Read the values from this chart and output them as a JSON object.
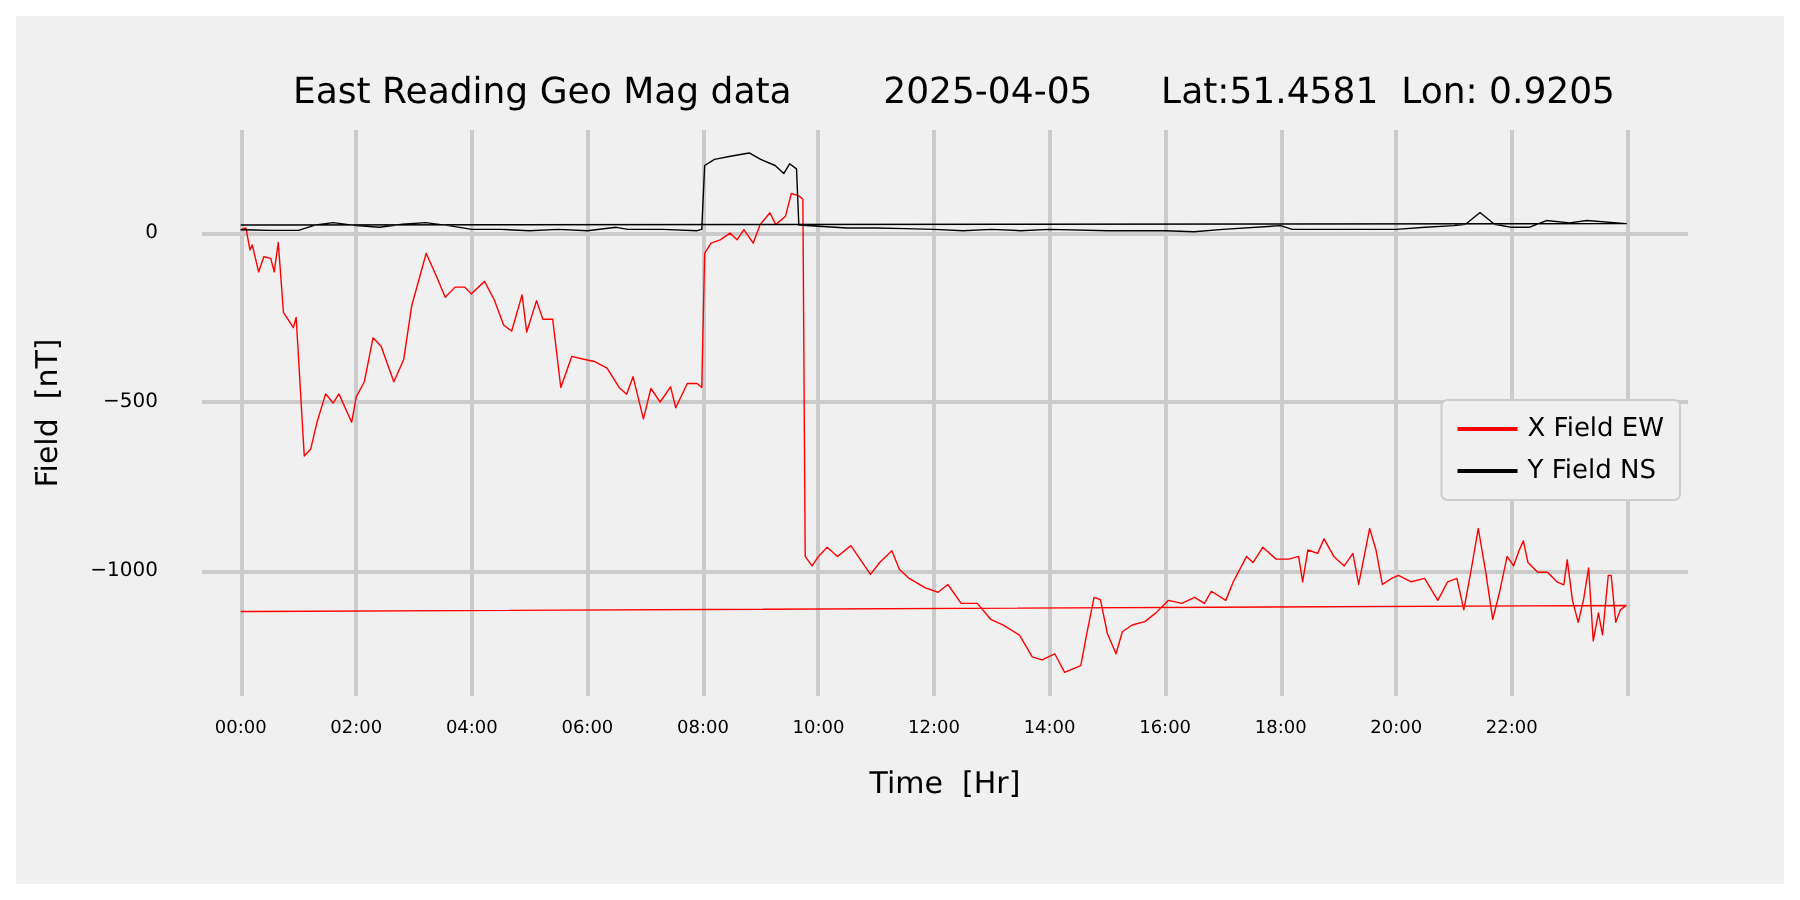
{
  "chart_data": {
    "type": "line",
    "title": "East Reading Geo Mag data        2025-04-05      Lat:51.4581  Lon: 0.9205",
    "xlabel": "Time  [Hr]",
    "ylabel": "Field  [nT]",
    "xlim": [
      -0.67,
      25.05
    ],
    "ylim": [
      -1370,
      305
    ],
    "xticks": [
      {
        "value": 0,
        "label": "00:00"
      },
      {
        "value": 2,
        "label": "02:00"
      },
      {
        "value": 4,
        "label": "04:00"
      },
      {
        "value": 6,
        "label": "06:00"
      },
      {
        "value": 8,
        "label": "08:00"
      },
      {
        "value": 10,
        "label": "10:00"
      },
      {
        "value": 12,
        "label": "12:00"
      },
      {
        "value": 14,
        "label": "14:00"
      },
      {
        "value": 16,
        "label": "16:00"
      },
      {
        "value": 18,
        "label": "18:00"
      },
      {
        "value": 20,
        "label": "20:00"
      },
      {
        "value": 22,
        "label": "22:00"
      },
      {
        "value": 24,
        "label": null
      }
    ],
    "yticks": [
      {
        "value": -1000,
        "label": "−1000"
      },
      {
        "value": -500,
        "label": "−500"
      },
      0
    ],
    "grid": true,
    "legend": "right",
    "series": [
      {
        "name": "X Field EW",
        "color": "#ff0000",
        "x": [
          0,
          0.09,
          0.16,
          0.2,
          0.31,
          0.4,
          0.52,
          0.58,
          0.65,
          0.74,
          0.91,
          0.96,
          1.1,
          1.21,
          1.32,
          1.47,
          1.6,
          1.7,
          1.92,
          2.0,
          2.14,
          2.29,
          2.43,
          2.65,
          2.82,
          2.96,
          3.21,
          3.38,
          3.54,
          3.71,
          3.88,
          3.99,
          4.22,
          4.39,
          4.55,
          4.69,
          4.87,
          4.95,
          5.12,
          5.23,
          5.4,
          5.54,
          5.73,
          5.9,
          6.12,
          6.34,
          6.55,
          6.68,
          6.79,
          6.97,
          7.1,
          7.26,
          7.44,
          7.53,
          7.73,
          7.9,
          7.98,
          8.03,
          8.14,
          8.3,
          8.47,
          8.59,
          8.71,
          8.87,
          8.99,
          9.16,
          9.26,
          9.43,
          9.53,
          9.66,
          9.73,
          9.77,
          9.89,
          10.0,
          10.15,
          10.33,
          10.56,
          10.72,
          10.9,
          11.06,
          11.27,
          11.4,
          11.57,
          11.85,
          12.07,
          12.24,
          12.47,
          12.75,
          12.98,
          13.2,
          13.48,
          13.7,
          13.87,
          14.09,
          14.26,
          14.54,
          14.65,
          14.77,
          14.88,
          15.0,
          15.15,
          15.26,
          15.43,
          15.65,
          15.84,
          16.06,
          16.29,
          16.51,
          16.68,
          16.8,
          17.05,
          17.18,
          17.41,
          17.52,
          17.69,
          17.92,
          18.14,
          18.31,
          18.38,
          18.47,
          18.64,
          18.75,
          18.92,
          19.1,
          19.25,
          19.35,
          19.54,
          19.65,
          19.76,
          19.92,
          20.04,
          20.26,
          20.49,
          20.72,
          20.89,
          21.05,
          21.17,
          21.3,
          21.42,
          21.55,
          21.67,
          21.78,
          21.92,
          22.03,
          22.13,
          22.2,
          22.28,
          22.45,
          22.62,
          22.78,
          22.9,
          22.96,
          23.05,
          23.15,
          23.24,
          23.33,
          23.41,
          23.5,
          23.57,
          23.67,
          23.72,
          23.8,
          23.88,
          23.98,
          0
        ],
        "values": [
          10,
          15,
          -50,
          -35,
          -115,
          -70,
          -75,
          -115,
          -28,
          -235,
          -280,
          -250,
          -660,
          -640,
          -560,
          -476,
          -503,
          -476,
          -560,
          -485,
          -440,
          -310,
          -335,
          -440,
          -375,
          -215,
          -60,
          -125,
          -190,
          -160,
          -160,
          -180,
          -143,
          -198,
          -272,
          -290,
          -183,
          -293,
          -200,
          -255,
          -255,
          -457,
          -365,
          -372,
          -380,
          -400,
          -457,
          -477,
          -425,
          -550,
          -460,
          -500,
          -455,
          -517,
          -445,
          -445,
          -457,
          -60,
          -30,
          -20,
          0,
          -20,
          10,
          -30,
          25,
          60,
          25,
          50,
          117,
          110,
          100,
          -957,
          -985,
          -957,
          -930,
          -957,
          -925,
          -965,
          -1010,
          -975,
          -940,
          -995,
          -1022,
          -1050,
          -1063,
          -1040,
          -1096,
          -1096,
          -1143,
          -1160,
          -1190,
          -1254,
          -1263,
          -1245,
          -1300,
          -1280,
          -1180,
          -1078,
          -1085,
          -1185,
          -1245,
          -1180,
          -1160,
          -1150,
          -1124,
          -1087,
          -1096,
          -1078,
          -1096,
          -1060,
          -1087,
          -1032,
          -957,
          -975,
          -930,
          -965,
          -965,
          -957,
          -1032,
          -938,
          -948,
          -905,
          -957,
          -985,
          -948,
          -1040,
          -874,
          -938,
          -1040,
          -1022,
          -1013,
          -1032,
          -1022,
          -1087,
          -1032,
          -1022,
          -1115,
          -994,
          -874,
          -1004,
          -1143,
          -1069,
          -957,
          -985,
          -938,
          -911,
          -975,
          -1004,
          -1004,
          -1032,
          -1041,
          -967,
          -1087,
          -1152,
          -1087,
          -991,
          -1207,
          -1124,
          -1189,
          -1013,
          -1013,
          -1152,
          -1115,
          -1102,
          -1120
        ]
      },
      {
        "name": "Y Field NS",
        "color": "#000000",
        "x": [
          0,
          0.5,
          1.0,
          1.3,
          1.6,
          2.0,
          2.4,
          2.8,
          3.2,
          3.6,
          4.0,
          4.5,
          5.0,
          5.5,
          6.0,
          6.5,
          6.7,
          7.3,
          7.9,
          7.98,
          8.03,
          8.2,
          8.5,
          8.8,
          9.0,
          9.25,
          9.4,
          9.5,
          9.62,
          9.66,
          10.0,
          10.5,
          11.0,
          11.5,
          12.0,
          12.5,
          13.0,
          13.5,
          14.0,
          15.0,
          16.0,
          16.5,
          17.0,
          18.0,
          18.2,
          19.0,
          20.0,
          20.5,
          21.0,
          21.2,
          21.45,
          21.7,
          22.0,
          22.3,
          22.6,
          23.0,
          23.3,
          23.98,
          0
        ],
        "values": [
          10,
          8,
          8,
          24,
          31,
          22,
          17,
          26,
          31,
          22,
          11,
          11,
          7,
          11,
          7,
          17,
          11,
          11,
          7,
          11,
          200,
          218,
          228,
          237,
          218,
          200,
          176,
          205,
          190,
          24,
          20,
          15,
          15,
          13,
          11,
          7,
          11,
          7,
          11,
          7,
          7,
          4,
          11,
          22,
          11,
          11,
          11,
          17,
          22,
          26,
          61,
          26,
          17,
          17,
          37,
          30,
          37,
          28,
          24
        ]
      }
    ]
  }
}
